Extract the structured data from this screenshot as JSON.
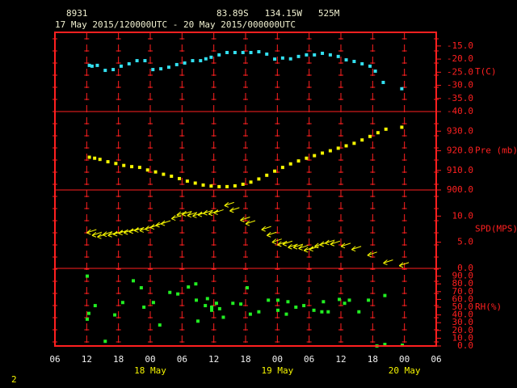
{
  "header": {
    "station": "8931",
    "location": "83.89S   134.15W   525M",
    "period": "17 May 2015/120000UTC - 20 May 2015/000000UTC",
    "page": "2"
  },
  "chart_data": [
    {
      "type": "scatter",
      "ylabel": "T(C)",
      "color": "#33e0f0",
      "marker": "square",
      "ylim": [
        -40,
        -9.8
      ],
      "yticks": [
        {
          "value": -15,
          "label": "-15.0"
        },
        {
          "value": -20,
          "label": "-20.0"
        },
        {
          "value": -25,
          "label": "-25.0"
        },
        {
          "value": -30,
          "label": "-30.0"
        },
        {
          "value": -35,
          "label": "-35.0"
        },
        {
          "value": -40,
          "label": "-40.0"
        }
      ],
      "x": [
        6.5,
        7,
        8,
        9.5,
        11,
        12.5,
        14,
        15.5,
        17,
        18.5,
        20,
        21.5,
        23,
        24.5,
        26,
        27.5,
        28.5,
        29.5,
        31,
        32.5,
        34,
        35.5,
        37,
        38.5,
        40,
        41.5,
        43,
        44.5,
        46,
        47.5,
        49,
        50.5,
        52,
        53.5,
        55,
        56.5,
        58,
        59.5,
        60.5,
        62,
        65.5
      ],
      "values": [
        -22.4,
        -22.7,
        -22.4,
        -24.3,
        -24,
        -22.7,
        -21.8,
        -20.6,
        -20.6,
        -24,
        -23.7,
        -23.1,
        -22.1,
        -21.5,
        -20.6,
        -20.6,
        -19.9,
        -19.3,
        -18.4,
        -17.5,
        -17.5,
        -17.5,
        -17.5,
        -17.2,
        -18.1,
        -20,
        -19.6,
        -19.9,
        -19,
        -18.4,
        -18.4,
        -17.8,
        -18.4,
        -19,
        -20.3,
        -20.9,
        -21.8,
        -22.7,
        -24.6,
        -28.9,
        -31.3
      ]
    },
    {
      "type": "scatter",
      "ylabel": "Pre (mb)",
      "color": "#f5f500",
      "marker": "square",
      "ylim": [
        900,
        940
      ],
      "yticks": [
        {
          "value": 930,
          "label": "930.0"
        },
        {
          "value": 920,
          "label": "920.0"
        },
        {
          "value": 910,
          "label": "910.0"
        },
        {
          "value": 900,
          "label": "900.0"
        }
      ],
      "x": [
        6.5,
        7.5,
        8.5,
        10,
        11.5,
        13,
        14.5,
        16,
        17.5,
        19,
        20.5,
        22,
        23.5,
        25,
        26.5,
        28,
        29.5,
        31,
        32.5,
        34,
        35.5,
        37,
        38.5,
        40,
        41.5,
        43,
        44.5,
        46,
        47.5,
        49,
        50.5,
        52,
        53.5,
        55,
        56.5,
        58,
        59.5,
        61,
        62.5,
        65.5
      ],
      "values": [
        916.7,
        916.2,
        915.6,
        914.4,
        913.5,
        912.5,
        911.9,
        911.5,
        910.2,
        909.2,
        908,
        907,
        905.8,
        904.5,
        903.5,
        902.5,
        902,
        901.7,
        901.7,
        902.1,
        902.9,
        904,
        905.6,
        907.5,
        909.6,
        911.5,
        913.3,
        914.8,
        916.2,
        917.5,
        918.8,
        920,
        921.3,
        922.5,
        923.8,
        925.5,
        927.3,
        929.2,
        931,
        932
      ]
    },
    {
      "type": "scatter",
      "ylabel": "SPD(MPS)",
      "color": "#f5f500",
      "marker": "arrow",
      "ylim": [
        0,
        15
      ],
      "yticks": [
        {
          "value": 10,
          "label": "10.0"
        },
        {
          "value": 5,
          "label": "5.0"
        },
        {
          "value": 0,
          "label": "0.0"
        }
      ],
      "x": [
        6,
        7,
        8,
        9,
        10,
        11,
        12,
        13,
        14,
        15,
        16,
        17,
        18,
        19,
        20,
        22,
        23,
        24,
        25,
        26,
        27,
        28,
        29,
        30,
        32,
        33,
        35,
        36,
        39,
        40,
        41,
        42,
        43,
        44,
        45,
        46,
        47,
        48,
        49,
        50,
        51,
        52,
        54,
        56,
        59,
        62,
        65
      ],
      "values": [
        6.8,
        6.3,
        6,
        6.4,
        6.3,
        6.5,
        6.7,
        6.8,
        7,
        7.2,
        7.2,
        7.5,
        7.8,
        8.2,
        8.5,
        9.5,
        10.2,
        10.3,
        10.1,
        10,
        10.2,
        10.5,
        10.4,
        10.6,
        12,
        11,
        9.2,
        8.5,
        7.4,
        6.3,
        5,
        4.5,
        4.6,
        4,
        4,
        3.8,
        3.4,
        3.6,
        4.2,
        4.5,
        4.8,
        4.6,
        4.2,
        3.6,
        2.5,
        1,
        0.5
      ]
    },
    {
      "type": "scatter",
      "ylabel": "RH(%)",
      "color": "#22ee22",
      "marker": "square",
      "ylim": [
        0,
        100
      ],
      "yticks": [
        {
          "value": 90,
          "label": "90.0"
        },
        {
          "value": 80,
          "label": "80.0"
        },
        {
          "value": 70,
          "label": "70.0"
        },
        {
          "value": 60,
          "label": "60.0"
        },
        {
          "value": 50,
          "label": "50.0"
        },
        {
          "value": 40,
          "label": "40.0"
        },
        {
          "value": 30,
          "label": "30.0"
        },
        {
          "value": 20,
          "label": "20.0"
        },
        {
          "value": 10,
          "label": "10.0"
        },
        {
          "value": 0,
          "label": "0.0"
        }
      ],
      "xlim": [
        0,
        72
      ],
      "xticks": [
        {
          "value": 0,
          "label": "06"
        },
        {
          "value": 6,
          "label": "12"
        },
        {
          "value": 12,
          "label": "18"
        },
        {
          "value": 18,
          "label": "00"
        },
        {
          "value": 24,
          "label": "06"
        },
        {
          "value": 30,
          "label": "12"
        },
        {
          "value": 36,
          "label": "18"
        },
        {
          "value": 42,
          "label": "00"
        },
        {
          "value": 48,
          "label": "06"
        },
        {
          "value": 54,
          "label": "12"
        },
        {
          "value": 60,
          "label": "18"
        },
        {
          "value": 66,
          "label": "00"
        },
        {
          "value": 72,
          "label": "06"
        }
      ],
      "xdate_ticks": [
        {
          "value": 18,
          "label": "18 May"
        },
        {
          "value": 42,
          "label": "19 May"
        },
        {
          "value": 66,
          "label": "20 May"
        }
      ],
      "x": [
        6.1,
        6.1,
        6.4,
        7.6,
        9.5,
        11.3,
        12.8,
        14.8,
        16.3,
        16.8,
        18.6,
        19.8,
        21.7,
        23.2,
        25.2,
        26.6,
        26.7,
        27,
        28.4,
        28.8,
        29.6,
        29.6,
        30.5,
        31.1,
        31.8,
        33.6,
        35.1,
        36.3,
        36.9,
        38.5,
        40.3,
        42.1,
        42.1,
        44,
        43.7,
        45.5,
        47,
        48.9,
        50.4,
        50.7,
        51.6,
        53.7,
        54.7,
        55.6,
        57.4,
        59.2,
        60.8,
        62.3,
        62.3,
        65.6
      ],
      "values": [
        90,
        34.5,
        42,
        52,
        6,
        40,
        56,
        84,
        75,
        50,
        56,
        27,
        69,
        67,
        76,
        80,
        59,
        32,
        52,
        61,
        50,
        46,
        55,
        48,
        37,
        55,
        54,
        75,
        41,
        44,
        59,
        59,
        46,
        57,
        41,
        50,
        52,
        46,
        44,
        57,
        44,
        60,
        55,
        59,
        44,
        59,
        0,
        65,
        2,
        1
      ]
    }
  ]
}
